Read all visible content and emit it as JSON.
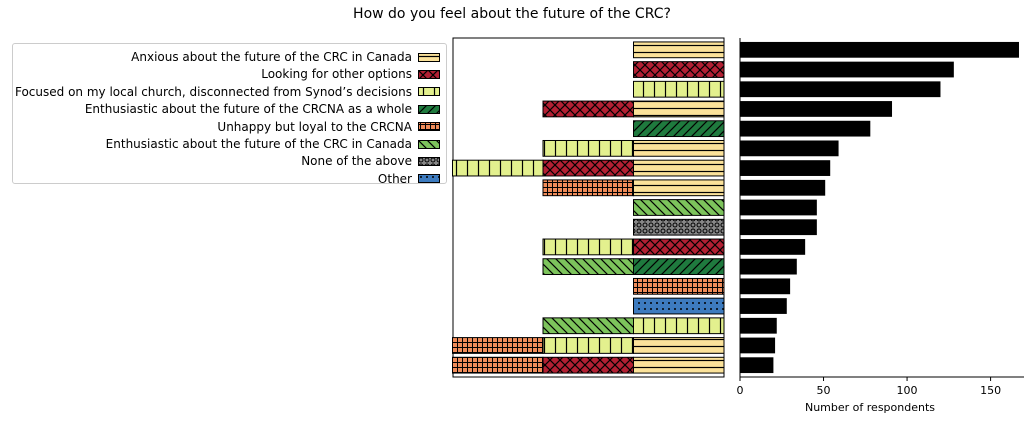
{
  "chart_data": {
    "type": "bar",
    "title": "How do you feel about the future of the CRC?",
    "legend_placement": "left",
    "categories": [
      {
        "name": "Anxious about the future of the CRC in Canada",
        "color": "#fbe29a",
        "hatch": "horizontal"
      },
      {
        "name": "Looking for other options",
        "color": "#b22033",
        "hatch": "crosshatch"
      },
      {
        "name": "Focused on my local church, disconnected from Synod’s decisions",
        "color": "#e3f08e",
        "hatch": "vertical"
      },
      {
        "name": "Enthusiastic about the future of the CRCNA as a whole",
        "color": "#1f7a3e",
        "hatch": "diagonal"
      },
      {
        "name": "Unhappy but loyal to the CRCNA",
        "color": "#f08c5a",
        "hatch": "plus"
      },
      {
        "name": "Enthusiastic about the future of the CRC in Canada",
        "color": "#7dc45c",
        "hatch": "backdiagonal"
      },
      {
        "name": "None of the above",
        "color": "#888888",
        "hatch": "circles"
      },
      {
        "name": "Other",
        "color": "#3d7bbf",
        "hatch": "dots"
      }
    ],
    "combinations": [
      {
        "members": [
          0
        ],
        "respondents": 167
      },
      {
        "members": [
          1
        ],
        "respondents": 128
      },
      {
        "members": [
          2
        ],
        "respondents": 120
      },
      {
        "members": [
          0,
          1
        ],
        "respondents": 91
      },
      {
        "members": [
          3
        ],
        "respondents": 78
      },
      {
        "members": [
          0,
          2
        ],
        "respondents": 59
      },
      {
        "members": [
          0,
          1,
          2
        ],
        "respondents": 54
      },
      {
        "members": [
          0,
          4
        ],
        "respondents": 51
      },
      {
        "members": [
          5
        ],
        "respondents": 46
      },
      {
        "members": [
          6
        ],
        "respondents": 46
      },
      {
        "members": [
          1,
          2
        ],
        "respondents": 39
      },
      {
        "members": [
          3,
          5
        ],
        "respondents": 34
      },
      {
        "members": [
          4
        ],
        "respondents": 30
      },
      {
        "members": [
          7
        ],
        "respondents": 28
      },
      {
        "members": [
          2,
          5
        ],
        "respondents": 22
      },
      {
        "members": [
          0,
          2,
          4
        ],
        "respondents": 21
      },
      {
        "members": [
          0,
          1,
          4
        ],
        "respondents": 20
      }
    ],
    "xlabel": "Number of respondents",
    "xlim": [
      0,
      170
    ],
    "xticks": [
      0,
      50,
      100,
      150
    ],
    "grid": false
  }
}
